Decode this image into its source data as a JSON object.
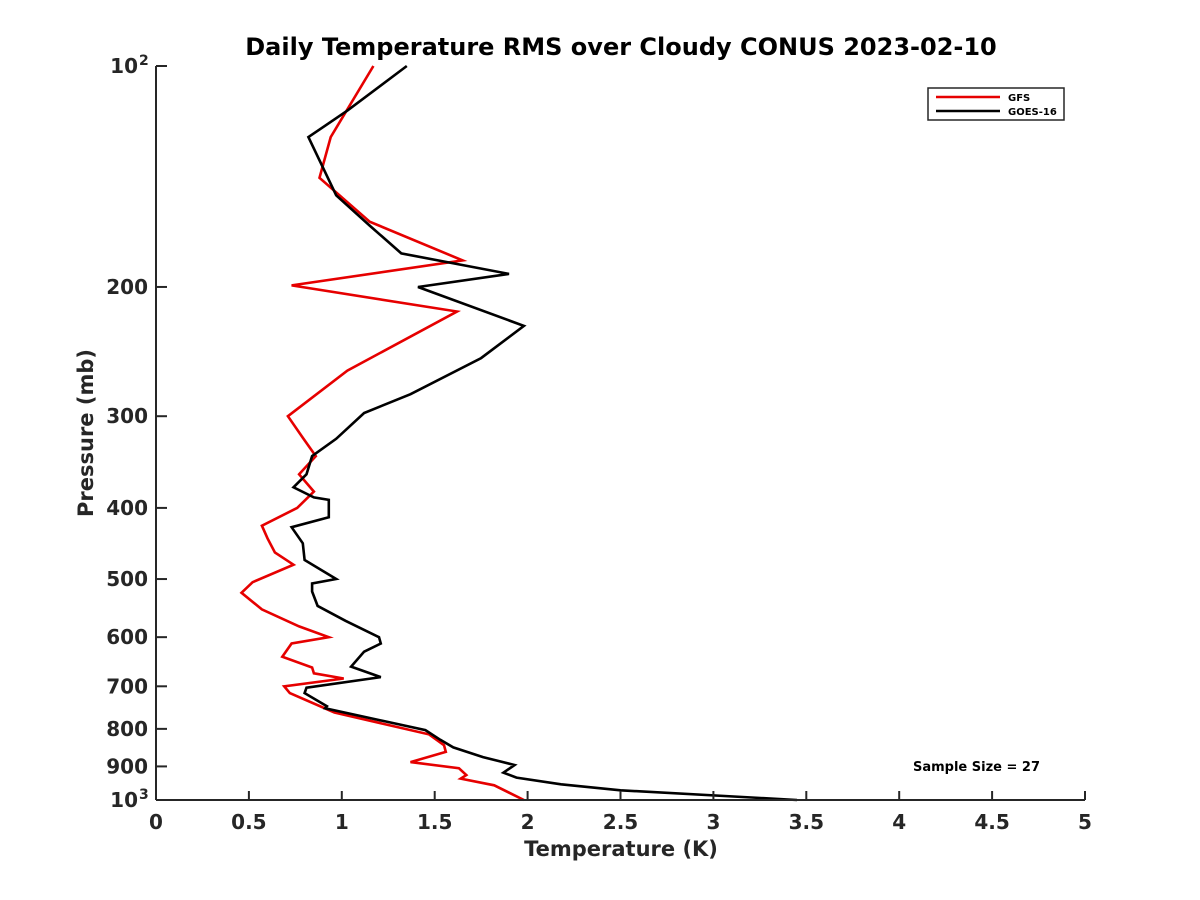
{
  "chart_data": {
    "type": "line",
    "title": "Daily Temperature RMS over Cloudy CONUS 2023-02-10",
    "xlabel": "Temperature (K)",
    "ylabel": "Pressure (mb)",
    "xlim": [
      0,
      5
    ],
    "ylim": [
      100,
      1000
    ],
    "y_scale": "log",
    "y_reversed": true,
    "grid": false,
    "legend_position": "top-right",
    "annotation": "Sample Size = 27",
    "x_ticks": [
      {
        "value": 0,
        "label": "0"
      },
      {
        "value": 0.5,
        "label": "0.5"
      },
      {
        "value": 1,
        "label": "1"
      },
      {
        "value": 1.5,
        "label": "1.5"
      },
      {
        "value": 2,
        "label": "2"
      },
      {
        "value": 2.5,
        "label": "2.5"
      },
      {
        "value": 3,
        "label": "3"
      },
      {
        "value": 3.5,
        "label": "3.5"
      },
      {
        "value": 4,
        "label": "4"
      },
      {
        "value": 4.5,
        "label": "4.5"
      },
      {
        "value": 5,
        "label": "5"
      }
    ],
    "y_ticks": [
      {
        "value": 100,
        "label": "10",
        "sup": "2"
      },
      {
        "value": 200,
        "label": "200"
      },
      {
        "value": 300,
        "label": "300"
      },
      {
        "value": 400,
        "label": "400"
      },
      {
        "value": 500,
        "label": "500"
      },
      {
        "value": 600,
        "label": "600"
      },
      {
        "value": 700,
        "label": "700"
      },
      {
        "value": 800,
        "label": "800"
      },
      {
        "value": 900,
        "label": "900"
      },
      {
        "value": 1000,
        "label": "10",
        "sup": "3"
      }
    ],
    "series": [
      {
        "name": "GFS",
        "color": "#e60000",
        "points": [
          [
            1.17,
            100
          ],
          [
            0.94,
            125
          ],
          [
            0.88,
            142
          ],
          [
            1.15,
            163
          ],
          [
            1.65,
            184
          ],
          [
            0.73,
            199
          ],
          [
            1.62,
            216
          ],
          [
            1.03,
            260
          ],
          [
            0.71,
            300
          ],
          [
            0.79,
            321
          ],
          [
            0.86,
            340
          ],
          [
            0.77,
            360
          ],
          [
            0.85,
            380
          ],
          [
            0.76,
            400
          ],
          [
            0.57,
            423
          ],
          [
            0.6,
            440
          ],
          [
            0.64,
            460
          ],
          [
            0.74,
            478
          ],
          [
            0.52,
            505
          ],
          [
            0.46,
            522
          ],
          [
            0.57,
            550
          ],
          [
            0.77,
            580
          ],
          [
            0.93,
            600
          ],
          [
            0.73,
            612
          ],
          [
            0.68,
            638
          ],
          [
            0.84,
            660
          ],
          [
            0.85,
            672
          ],
          [
            1.01,
            683
          ],
          [
            0.69,
            700
          ],
          [
            0.72,
            715
          ],
          [
            0.96,
            760
          ],
          [
            1.47,
            814
          ],
          [
            1.55,
            842
          ],
          [
            1.56,
            860
          ],
          [
            1.37,
            888
          ],
          [
            1.63,
            905
          ],
          [
            1.67,
            925
          ],
          [
            1.64,
            935
          ],
          [
            1.82,
            955
          ],
          [
            1.98,
            1000
          ]
        ]
      },
      {
        "name": "GOES-16",
        "color": "#000000",
        "points": [
          [
            1.35,
            100
          ],
          [
            1.03,
            115
          ],
          [
            0.82,
            125
          ],
          [
            0.97,
            150
          ],
          [
            1.15,
            165
          ],
          [
            1.32,
            180
          ],
          [
            1.9,
            192
          ],
          [
            1.41,
            200
          ],
          [
            1.98,
            226
          ],
          [
            1.75,
            250
          ],
          [
            1.37,
            280
          ],
          [
            1.12,
            297
          ],
          [
            0.97,
            322
          ],
          [
            0.84,
            340
          ],
          [
            0.81,
            360
          ],
          [
            0.74,
            375
          ],
          [
            0.85,
            387
          ],
          [
            0.93,
            390
          ],
          [
            0.93,
            412
          ],
          [
            0.73,
            425
          ],
          [
            0.79,
            447
          ],
          [
            0.8,
            471
          ],
          [
            0.97,
            500
          ],
          [
            0.84,
            507
          ],
          [
            0.84,
            520
          ],
          [
            0.87,
            544
          ],
          [
            1.02,
            570
          ],
          [
            1.2,
            600
          ],
          [
            1.21,
            612
          ],
          [
            1.12,
            628
          ],
          [
            1.05,
            658
          ],
          [
            1.21,
            680
          ],
          [
            0.81,
            703
          ],
          [
            0.8,
            715
          ],
          [
            0.92,
            745
          ],
          [
            0.91,
            750
          ],
          [
            1.45,
            803
          ],
          [
            1.53,
            828
          ],
          [
            1.6,
            848
          ],
          [
            1.76,
            874
          ],
          [
            1.93,
            896
          ],
          [
            1.87,
            918
          ],
          [
            1.94,
            932
          ],
          [
            2.18,
            952
          ],
          [
            2.5,
            970
          ],
          [
            3.45,
            1000
          ]
        ]
      }
    ]
  }
}
